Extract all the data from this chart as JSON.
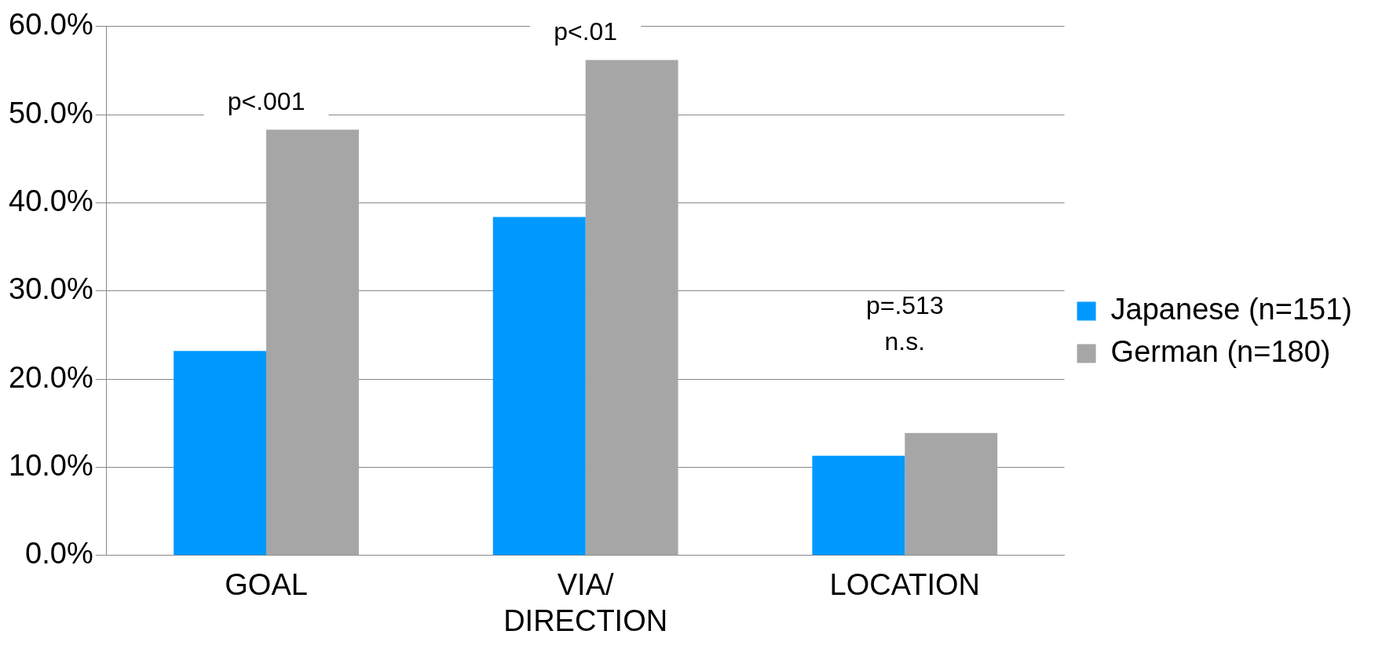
{
  "chart_data": {
    "type": "bar",
    "categories": [
      "GOAL",
      "VIA/ DIRECTION",
      "LOCATION"
    ],
    "series": [
      {
        "name": "Japanese (n=151)",
        "color": "#0099ff",
        "values": [
          23.2,
          38.4,
          11.3
        ]
      },
      {
        "name": "German (n=180)",
        "color": "#a6a6a6",
        "values": [
          48.3,
          56.2,
          13.9
        ]
      }
    ],
    "ylim": [
      0,
      60
    ],
    "yticks": [
      {
        "value": 0,
        "label": "0.0%"
      },
      {
        "value": 10,
        "label": "10.0%"
      },
      {
        "value": 20,
        "label": "20.0%"
      },
      {
        "value": 30,
        "label": "30.0%"
      },
      {
        "value": 40,
        "label": "40.0%"
      },
      {
        "value": 50,
        "label": "50.0%"
      },
      {
        "value": 60,
        "label": "60.0%"
      }
    ],
    "grid": "y",
    "legend": "right",
    "annotations": [
      "p<.001",
      "p<.01",
      "p=.513 n.s."
    ]
  }
}
